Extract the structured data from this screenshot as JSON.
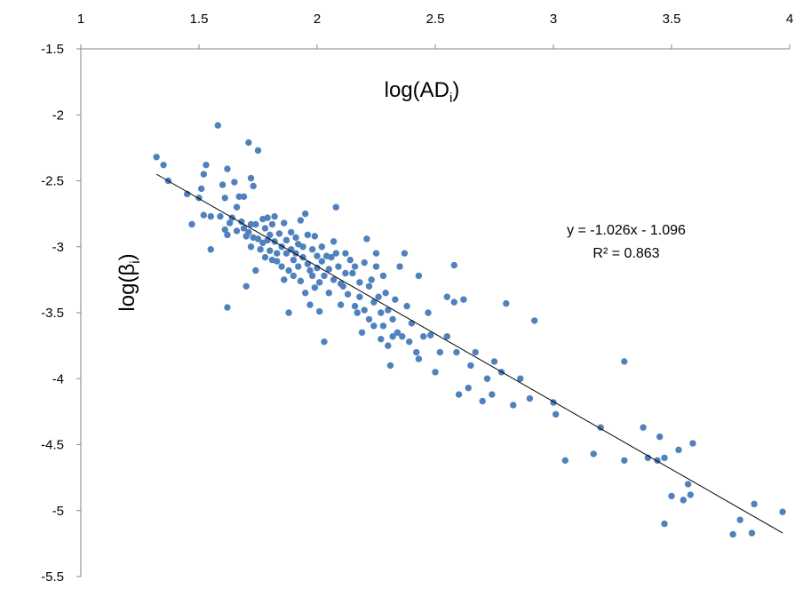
{
  "chart_data": {
    "type": "scatter",
    "title": "",
    "xlabel": "log(AD",
    "xlabel_sub": "i",
    "xlabel_tail": ")",
    "ylabel": "log(β",
    "ylabel_sub": "i",
    "ylabel_tail": ")",
    "xlim": [
      1,
      4
    ],
    "ylim": [
      -5.5,
      -1.5
    ],
    "xticks": [
      1,
      1.5,
      2,
      2.5,
      3,
      3.5,
      4
    ],
    "yticks": [
      -1.5,
      -2,
      -2.5,
      -3,
      -3.5,
      -4,
      -4.5,
      -5,
      -5.5
    ],
    "x_axis_position": "top",
    "y_axis_reversed": true,
    "grid": false,
    "legend": "none",
    "marker_color": "#4F81BD",
    "trendline": {
      "type": "linear",
      "slope": -1.026,
      "intercept": -1.096,
      "x_range": [
        1.32,
        3.97
      ],
      "color": "#000000",
      "equation_label": "y = -1.026x - 1.096",
      "r2_label": "R² = 0.863"
    },
    "series": [
      {
        "points": [
          [
            1.32,
            -2.32
          ],
          [
            1.35,
            -2.38
          ],
          [
            1.37,
            -2.5
          ],
          [
            1.45,
            -2.6
          ],
          [
            1.47,
            -2.83
          ],
          [
            1.5,
            -2.63
          ],
          [
            1.51,
            -2.56
          ],
          [
            1.52,
            -2.45
          ],
          [
            1.53,
            -2.38
          ],
          [
            1.52,
            -2.76
          ],
          [
            1.55,
            -2.77
          ],
          [
            1.55,
            -3.02
          ],
          [
            1.58,
            -2.08
          ],
          [
            1.59,
            -2.77
          ],
          [
            1.6,
            -2.53
          ],
          [
            1.61,
            -2.63
          ],
          [
            1.61,
            -2.87
          ],
          [
            1.62,
            -2.91
          ],
          [
            1.62,
            -2.41
          ],
          [
            1.63,
            -2.82
          ],
          [
            1.64,
            -2.78
          ],
          [
            1.62,
            -3.46
          ],
          [
            1.65,
            -2.51
          ],
          [
            1.66,
            -2.88
          ],
          [
            1.66,
            -2.7
          ],
          [
            1.67,
            -2.62
          ],
          [
            1.68,
            -2.81
          ],
          [
            1.69,
            -2.86
          ],
          [
            1.69,
            -2.62
          ],
          [
            1.7,
            -2.92
          ],
          [
            1.7,
            -3.3
          ],
          [
            1.71,
            -2.89
          ],
          [
            1.71,
            -2.21
          ],
          [
            1.72,
            -2.48
          ],
          [
            1.72,
            -2.83
          ],
          [
            1.72,
            -3.0
          ],
          [
            1.73,
            -2.93
          ],
          [
            1.73,
            -2.54
          ],
          [
            1.74,
            -2.83
          ],
          [
            1.74,
            -3.18
          ],
          [
            1.75,
            -2.27
          ],
          [
            1.75,
            -2.94
          ],
          [
            1.76,
            -3.02
          ],
          [
            1.77,
            -2.79
          ],
          [
            1.77,
            -2.97
          ],
          [
            1.78,
            -2.86
          ],
          [
            1.78,
            -3.08
          ],
          [
            1.79,
            -2.78
          ],
          [
            1.79,
            -2.95
          ],
          [
            1.8,
            -3.03
          ],
          [
            1.8,
            -2.91
          ],
          [
            1.81,
            -3.1
          ],
          [
            1.81,
            -2.83
          ],
          [
            1.82,
            -2.96
          ],
          [
            1.82,
            -2.77
          ],
          [
            1.83,
            -3.05
          ],
          [
            1.83,
            -3.11
          ],
          [
            1.84,
            -2.9
          ],
          [
            1.85,
            -3.0
          ],
          [
            1.85,
            -3.15
          ],
          [
            1.86,
            -2.82
          ],
          [
            1.86,
            -3.25
          ],
          [
            1.87,
            -3.05
          ],
          [
            1.87,
            -2.95
          ],
          [
            1.88,
            -3.18
          ],
          [
            1.88,
            -3.5
          ],
          [
            1.89,
            -2.89
          ],
          [
            1.89,
            -3.02
          ],
          [
            1.9,
            -3.1
          ],
          [
            1.9,
            -3.22
          ],
          [
            1.91,
            -2.93
          ],
          [
            1.91,
            -3.05
          ],
          [
            1.92,
            -3.15
          ],
          [
            1.92,
            -2.98
          ],
          [
            1.93,
            -3.26
          ],
          [
            1.93,
            -2.8
          ],
          [
            1.94,
            -3.08
          ],
          [
            1.94,
            -3.0
          ],
          [
            1.95,
            -3.35
          ],
          [
            1.95,
            -2.75
          ],
          [
            1.96,
            -3.13
          ],
          [
            1.96,
            -2.91
          ],
          [
            1.97,
            -3.18
          ],
          [
            1.97,
            -3.44
          ],
          [
            1.98,
            -3.02
          ],
          [
            1.98,
            -3.22
          ],
          [
            1.99,
            -3.31
          ],
          [
            1.99,
            -2.92
          ],
          [
            2.0,
            -3.07
          ],
          [
            2.0,
            -3.16
          ],
          [
            2.01,
            -3.27
          ],
          [
            2.01,
            -3.49
          ],
          [
            2.02,
            -3.0
          ],
          [
            2.02,
            -3.11
          ],
          [
            2.03,
            -3.22
          ],
          [
            2.03,
            -3.72
          ],
          [
            2.04,
            -3.07
          ],
          [
            2.05,
            -3.17
          ],
          [
            2.05,
            -3.35
          ],
          [
            2.06,
            -3.08
          ],
          [
            2.07,
            -3.25
          ],
          [
            2.07,
            -2.96
          ],
          [
            2.08,
            -3.05
          ],
          [
            2.08,
            -2.7
          ],
          [
            2.09,
            -3.15
          ],
          [
            2.1,
            -3.28
          ],
          [
            2.1,
            -3.44
          ],
          [
            2.11,
            -3.3
          ],
          [
            2.12,
            -3.05
          ],
          [
            2.12,
            -3.2
          ],
          [
            2.13,
            -3.36
          ],
          [
            2.14,
            -3.1
          ],
          [
            2.15,
            -3.2
          ],
          [
            2.16,
            -3.45
          ],
          [
            2.16,
            -3.15
          ],
          [
            2.17,
            -3.5
          ],
          [
            2.18,
            -3.27
          ],
          [
            2.18,
            -3.38
          ],
          [
            2.19,
            -3.65
          ],
          [
            2.2,
            -3.12
          ],
          [
            2.2,
            -3.48
          ],
          [
            2.21,
            -2.94
          ],
          [
            2.22,
            -3.3
          ],
          [
            2.22,
            -3.55
          ],
          [
            2.23,
            -3.25
          ],
          [
            2.24,
            -3.42
          ],
          [
            2.24,
            -3.6
          ],
          [
            2.25,
            -3.15
          ],
          [
            2.25,
            -3.05
          ],
          [
            2.26,
            -3.38
          ],
          [
            2.27,
            -3.7
          ],
          [
            2.27,
            -3.5
          ],
          [
            2.28,
            -3.22
          ],
          [
            2.28,
            -3.6
          ],
          [
            2.29,
            -3.35
          ],
          [
            2.3,
            -3.75
          ],
          [
            2.3,
            -3.48
          ],
          [
            2.31,
            -3.9
          ],
          [
            2.32,
            -3.55
          ],
          [
            2.32,
            -3.68
          ],
          [
            2.33,
            -3.4
          ],
          [
            2.34,
            -3.65
          ],
          [
            2.35,
            -3.15
          ],
          [
            2.36,
            -3.68
          ],
          [
            2.37,
            -3.05
          ],
          [
            2.38,
            -3.45
          ],
          [
            2.39,
            -3.72
          ],
          [
            2.4,
            -3.58
          ],
          [
            2.42,
            -3.8
          ],
          [
            2.43,
            -3.85
          ],
          [
            2.43,
            -3.22
          ],
          [
            2.45,
            -3.68
          ],
          [
            2.47,
            -3.5
          ],
          [
            2.48,
            -3.67
          ],
          [
            2.5,
            -3.95
          ],
          [
            2.52,
            -3.8
          ],
          [
            2.55,
            -3.68
          ],
          [
            2.55,
            -3.38
          ],
          [
            2.58,
            -3.42
          ],
          [
            2.58,
            -3.14
          ],
          [
            2.59,
            -3.8
          ],
          [
            2.6,
            -4.12
          ],
          [
            2.62,
            -3.4
          ],
          [
            2.64,
            -4.07
          ],
          [
            2.65,
            -3.9
          ],
          [
            2.67,
            -3.8
          ],
          [
            2.7,
            -4.17
          ],
          [
            2.72,
            -4.0
          ],
          [
            2.74,
            -4.12
          ],
          [
            2.75,
            -3.87
          ],
          [
            2.78,
            -3.95
          ],
          [
            2.8,
            -3.43
          ],
          [
            2.83,
            -4.2
          ],
          [
            2.86,
            -4.0
          ],
          [
            2.9,
            -4.15
          ],
          [
            2.92,
            -3.56
          ],
          [
            3.0,
            -4.18
          ],
          [
            3.01,
            -4.27
          ],
          [
            3.05,
            -4.62
          ],
          [
            3.17,
            -4.57
          ],
          [
            3.2,
            -4.37
          ],
          [
            3.3,
            -4.62
          ],
          [
            3.3,
            -3.87
          ],
          [
            3.38,
            -4.37
          ],
          [
            3.4,
            -4.6
          ],
          [
            3.44,
            -4.62
          ],
          [
            3.45,
            -4.44
          ],
          [
            3.47,
            -4.6
          ],
          [
            3.47,
            -5.1
          ],
          [
            3.5,
            -4.89
          ],
          [
            3.53,
            -4.54
          ],
          [
            3.55,
            -4.92
          ],
          [
            3.57,
            -4.8
          ],
          [
            3.58,
            -4.88
          ],
          [
            3.59,
            -4.49
          ],
          [
            3.76,
            -5.18
          ],
          [
            3.79,
            -5.07
          ],
          [
            3.84,
            -5.17
          ],
          [
            3.85,
            -4.95
          ],
          [
            3.97,
            -5.01
          ]
        ]
      }
    ]
  }
}
